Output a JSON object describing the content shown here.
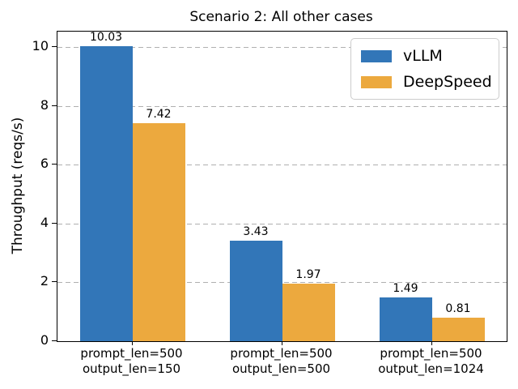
{
  "figure": {
    "title": "Scenario 2: All other cases",
    "ylabel": "Throughput (reqs/s)"
  },
  "chart_data": {
    "type": "bar",
    "title": "Scenario 2: All other cases",
    "xlabel": "",
    "ylabel": "Throughput (reqs/s)",
    "categories": [
      "prompt_len=500\noutput_len=150",
      "prompt_len=500\noutput_len=500",
      "prompt_len=500\noutput_len=1024"
    ],
    "series": [
      {
        "name": "vLLM",
        "color": "#3276b8",
        "values": [
          10.03,
          3.43,
          1.49
        ]
      },
      {
        "name": "DeepSpeed",
        "color": "#eca93e",
        "values": [
          7.42,
          1.97,
          0.81
        ]
      }
    ],
    "bar_value_labels": [
      "10.03",
      "3.43",
      "1.49",
      "7.42",
      "1.97",
      "0.81"
    ],
    "yticks": [
      0,
      2,
      4,
      6,
      8,
      10
    ],
    "ylim": [
      0,
      10.53
    ],
    "grid": {
      "axis": "y",
      "style": "dashed",
      "color": "#b0b0b0"
    },
    "legend_position": "upper right",
    "bar_width_fraction": 0.35
  }
}
